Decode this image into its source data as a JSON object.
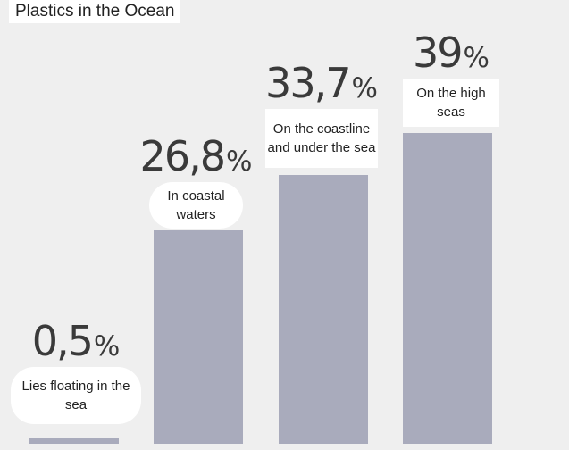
{
  "title": "Plastics in the Ocean",
  "chart_data": {
    "type": "bar",
    "title": "Plastics in the Ocean",
    "categories": [
      "Lies floating in the sea",
      "In coastal waters",
      "On the coastline and under the sea",
      "On the high seas"
    ],
    "values": [
      0.5,
      26.8,
      33.7,
      39
    ],
    "value_labels": [
      "0,5",
      "26,8",
      "33,7",
      "39"
    ],
    "unit": "%",
    "xlabel": "",
    "ylabel": "",
    "grid": false,
    "legend": "none",
    "colors": {
      "bar": "#a9abbc",
      "background": "#efefef",
      "label_background": "#ffffff",
      "text": "#3a3a3a"
    }
  }
}
